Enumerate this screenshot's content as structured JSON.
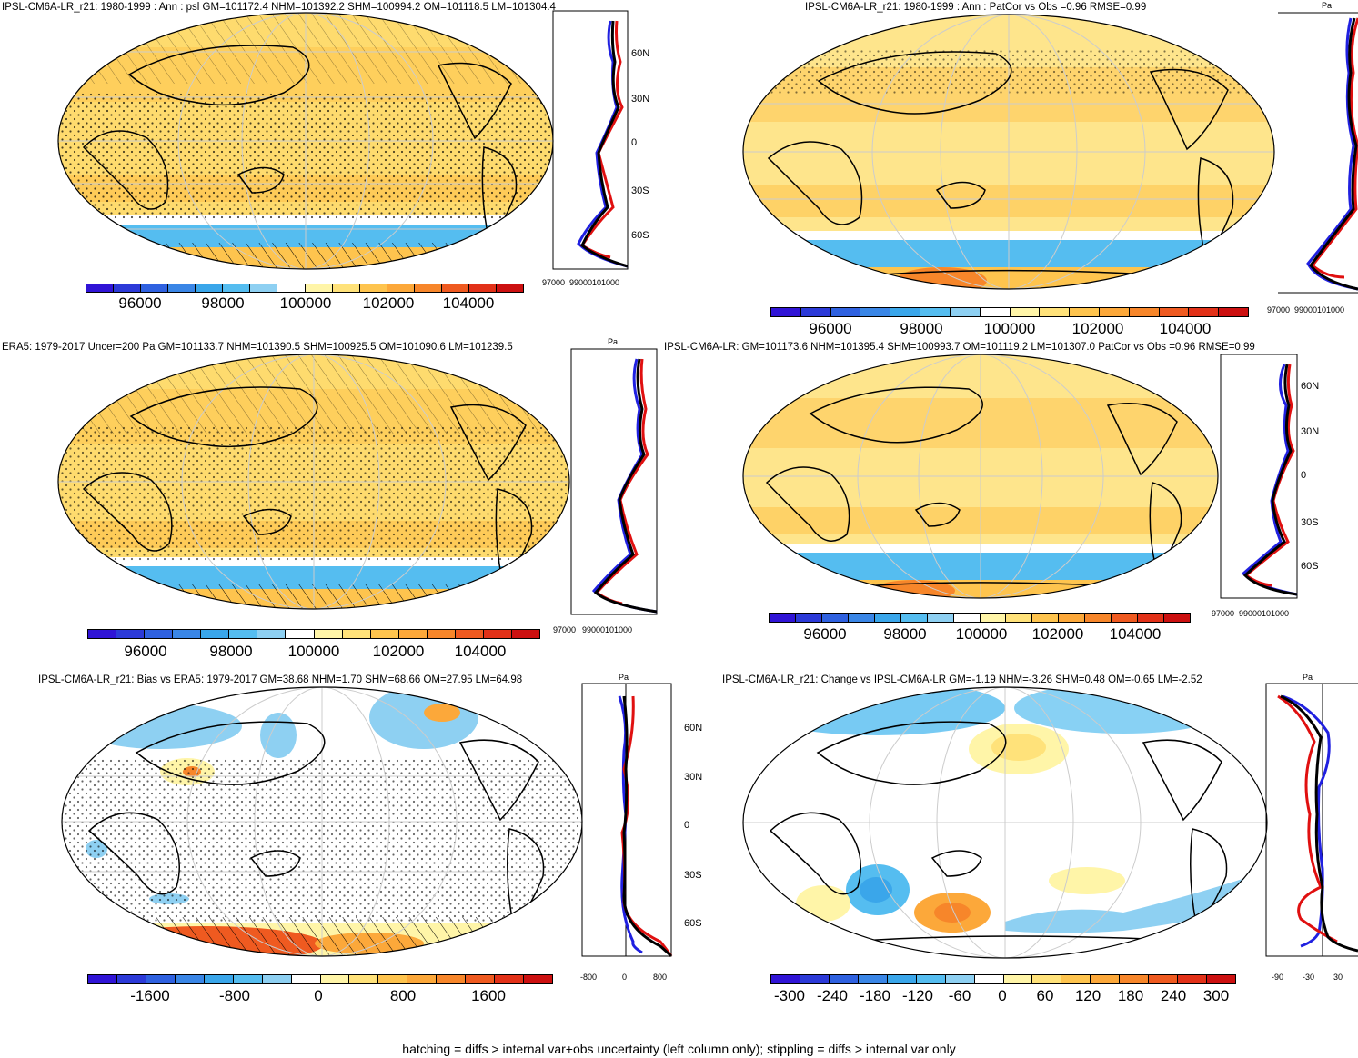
{
  "panels": [
    {
      "id": "tl",
      "title": "IPSL-CM6A-LR_r21: 1980-1999 : Ann : psl GM=101172.4 NHM=101392.2 SHM=100994.2 OM=101118.5 LM=101304.4"
    },
    {
      "id": "tr",
      "title": "IPSL-CM6A-LR_r21: 1980-1999 : Ann : PatCor vs Obs =0.96 RMSE=0.99"
    },
    {
      "id": "ml",
      "title": "ERA5: 1979-2017 Uncer=200 Pa GM=101133.7 NHM=101390.5 SHM=100925.5 OM=101090.6 LM=101239.5"
    },
    {
      "id": "mr",
      "title": "IPSL-CM6A-LR: GM=101173.6 NHM=101395.4 SHM=100993.7 OM=101119.2 LM=101307.0 PatCor vs Obs =0.96 RMSE=0.99"
    },
    {
      "id": "bl",
      "title": "IPSL-CM6A-LR_r21: Bias vs ERA5: 1979-2017 GM=38.68 NHM=1.70 SHM=68.66 OM=27.95 LM=64.98"
    },
    {
      "id": "br",
      "title": "IPSL-CM6A-LR_r21: Change vs IPSL-CM6A-LR GM=-1.19 NHM=-3.26 SHM=0.48 OM=-0.65 LM=-2.52"
    }
  ],
  "colorbars": {
    "abs_labels": [
      "96000",
      "98000",
      "100000",
      "102000",
      "104000"
    ],
    "bias_labels": [
      "-1600",
      "-800",
      "0",
      "800",
      "1600"
    ],
    "change_labels": [
      "-300",
      "-240",
      "-180",
      "-120",
      "-60",
      "0",
      "60",
      "120",
      "180",
      "240",
      "300"
    ],
    "colors": [
      "#3014d6",
      "#2c3ad8",
      "#2f61e0",
      "#3a86e6",
      "#3aa6ea",
      "#55bdf0",
      "#8ed0f2",
      "#ffffff",
      "#fff5a8",
      "#ffe27a",
      "#fec44e",
      "#fca83a",
      "#f7862a",
      "#ef5a20",
      "#e23118",
      "#cc1010"
    ]
  },
  "profile": {
    "unit": "Pa",
    "abs_ticks": [
      "97000",
      "99000101000"
    ],
    "bias_ticks": [
      "-800",
      "0",
      "800"
    ],
    "change_ticks": [
      "-90",
      "-30",
      "30"
    ],
    "lat_labels": [
      "60N",
      "30N",
      "0",
      "30S",
      "60S"
    ]
  },
  "footer": "hatching = diffs > internal var+obs uncertainty (left column only); stippling = diffs > internal var only"
}
